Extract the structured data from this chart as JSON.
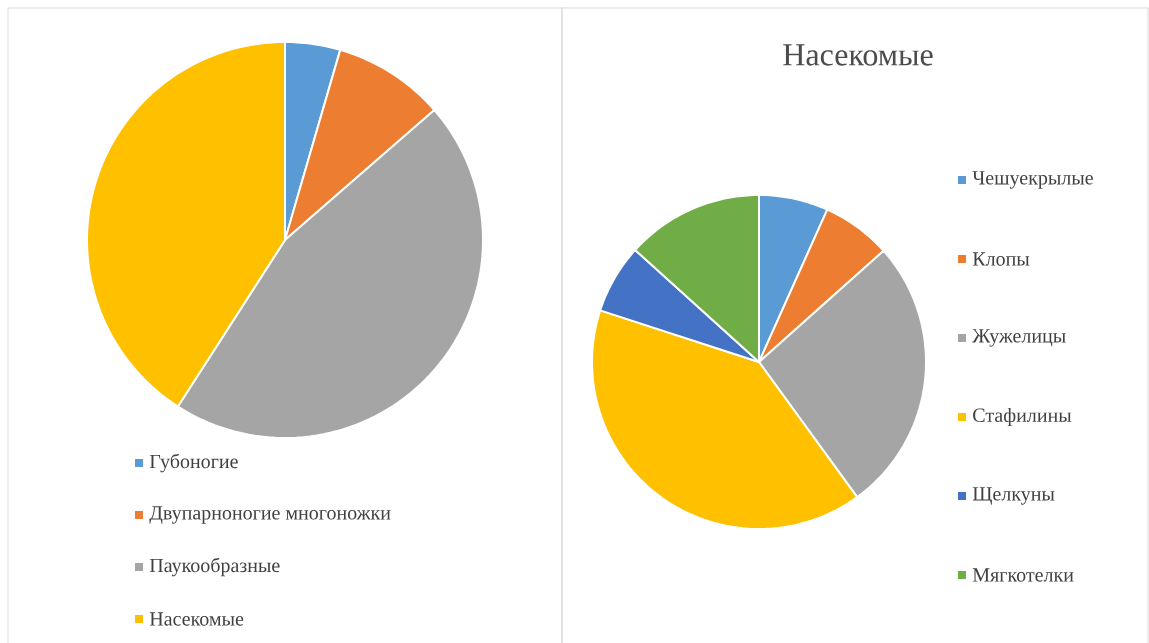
{
  "chart_data": [
    {
      "type": "pie",
      "categories": [
        "Губоногие",
        "Двупарноногие многоножки",
        "Паукообразные",
        "Насекомые"
      ],
      "values": [
        4.5,
        9.1,
        45.5,
        40.9
      ],
      "colors": [
        "#5b9bd5",
        "#ed7d31",
        "#a5a5a5",
        "#ffc000"
      ],
      "legend": "bottom"
    },
    {
      "type": "pie",
      "title": "Насекомые",
      "categories": [
        "Чешуекрылые",
        "Клопы",
        "Жужелицы",
        "Стафилины",
        "Щелкуны",
        "Мягкотелки"
      ],
      "values": [
        6.7,
        6.7,
        26.6,
        40,
        6.7,
        13.3
      ],
      "colors": [
        "#5b9bd5",
        "#ed7d31",
        "#a5a5a5",
        "#ffc000",
        "#4472c4",
        "#70ad47"
      ],
      "legend": "right"
    }
  ]
}
